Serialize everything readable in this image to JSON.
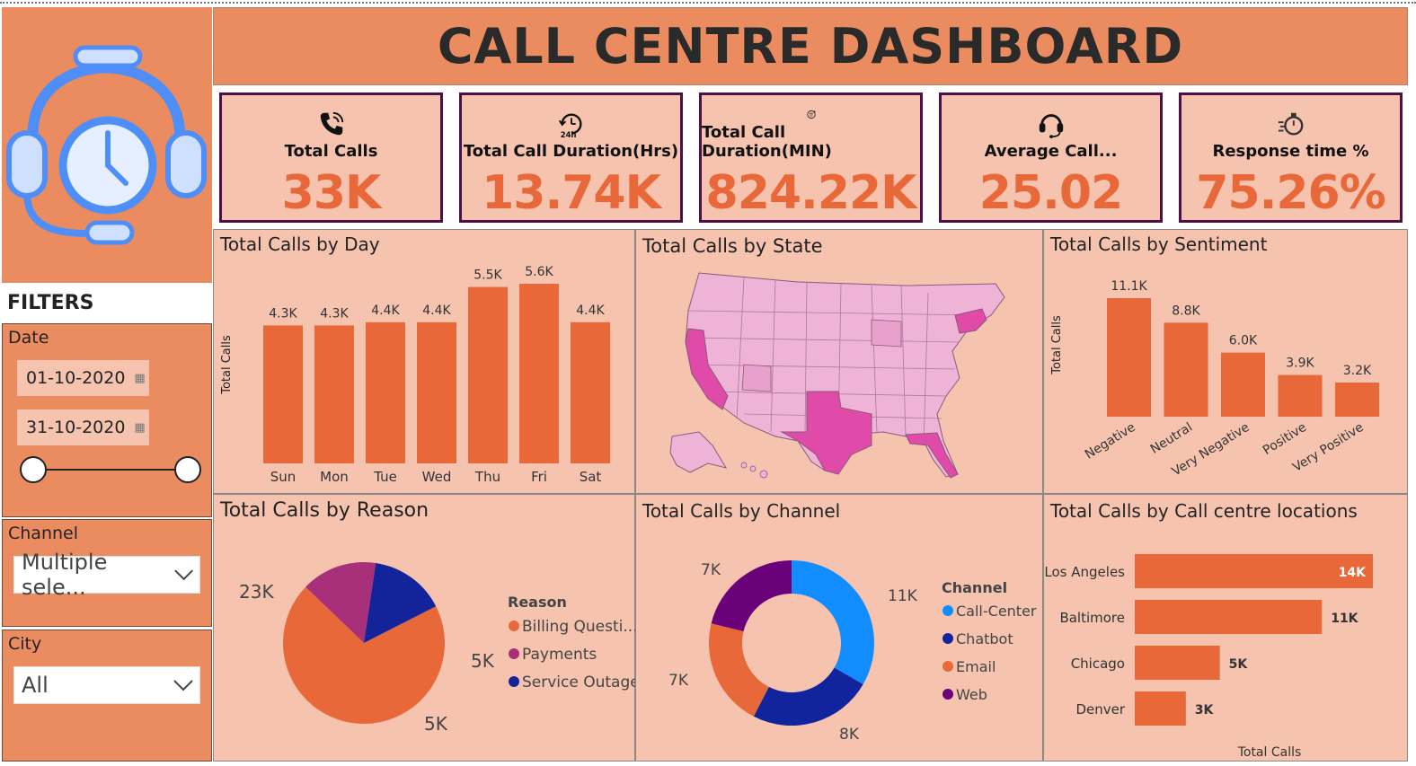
{
  "header": {
    "title": "CALL CENTRE DASHBOARD"
  },
  "colors": {
    "accent": "#e8683a",
    "panel": "#f5c3ae",
    "header": "#eb8c60",
    "card_border": "#4b1048"
  },
  "filters": {
    "title": "FILTERS",
    "date": {
      "label": "Date",
      "start": "01-10-2020",
      "end": "31-10-2020"
    },
    "channel": {
      "label": "Channel",
      "value": "Multiple sele..."
    },
    "city": {
      "label": "City",
      "value": "All"
    }
  },
  "kpis": [
    {
      "label": "Total Calls",
      "value": "33K",
      "icon": "phone-icon"
    },
    {
      "label": "Total Call Duration(Hrs)",
      "value": "13.74K",
      "icon": "24h-clock-icon"
    },
    {
      "label": "Total Call Duration(MIN)",
      "value": "824.22K",
      "icon": "60-min-icon"
    },
    {
      "label": "Average Call...",
      "value": "25.02",
      "icon": "headset-icon"
    },
    {
      "label": "Response time %",
      "value": "75.26%",
      "icon": "stopwatch-icon"
    }
  ],
  "panels": {
    "by_day": {
      "title": "Total Calls by Day"
    },
    "by_state": {
      "title": "Total Calls by State"
    },
    "by_sentiment": {
      "title": "Total Calls by Sentiment"
    },
    "by_reason": {
      "title": "Total Calls by Reason"
    },
    "by_channel": {
      "title": "Total Calls by Channel"
    },
    "by_location": {
      "title": "Total Calls by Call centre locations"
    }
  },
  "chart_data": [
    {
      "type": "bar",
      "title": "Total Calls by Day",
      "ylabel": "Total Calls",
      "categories": [
        "Sun",
        "Mon",
        "Tue",
        "Wed",
        "Thu",
        "Fri",
        "Sat"
      ],
      "values": [
        4300,
        4300,
        4400,
        4400,
        5500,
        5600,
        4400
      ],
      "labels": [
        "4.3K",
        "4.3K",
        "4.4K",
        "4.4K",
        "5.5K",
        "5.6K",
        "4.4K"
      ]
    },
    {
      "type": "bar",
      "title": "Total Calls by Sentiment",
      "ylabel": "Total Calls",
      "categories": [
        "Negative",
        "Neutral",
        "Very Negative",
        "Positive",
        "Very Positive"
      ],
      "values": [
        11100,
        8800,
        6000,
        3900,
        3200
      ],
      "labels": [
        "11.1K",
        "8.8K",
        "6.0K",
        "3.9K",
        "3.2K"
      ]
    },
    {
      "type": "pie",
      "title": "Total Calls by Reason",
      "legend_title": "Reason",
      "categories": [
        "Billing Questi...",
        "Payments",
        "Service Outage"
      ],
      "values": [
        23000,
        5000,
        5000
      ],
      "labels": [
        "23K",
        "5K",
        "5K"
      ],
      "colors": [
        "#e8683a",
        "#a8307a",
        "#13249a"
      ]
    },
    {
      "type": "pie",
      "title": "Total Calls by Channel",
      "legend_title": "Channel",
      "categories": [
        "Call-Center",
        "Chatbot",
        "Email",
        "Web"
      ],
      "values": [
        11000,
        8000,
        7000,
        7000
      ],
      "labels": [
        "11K",
        "8K",
        "7K",
        "7K"
      ],
      "colors": [
        "#118dff",
        "#12239e",
        "#e8683a",
        "#6b007b"
      ]
    },
    {
      "type": "bar",
      "title": "Total Calls by Call centre locations",
      "xlabel": "Total Calls",
      "categories": [
        "Los Angeles",
        "Baltimore",
        "Chicago",
        "Denver"
      ],
      "values": [
        14000,
        11000,
        5000,
        3000
      ],
      "labels": [
        "14K",
        "11K",
        "5K",
        "3K"
      ]
    }
  ]
}
